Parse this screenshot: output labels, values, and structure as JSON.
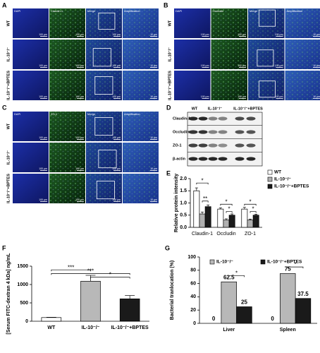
{
  "panel_labels": [
    "A",
    "B",
    "C",
    "D",
    "E",
    "F",
    "G"
  ],
  "micro_panels": [
    {
      "columns": [
        "DAPI",
        "Claudin-1",
        "Merge",
        "Amplification"
      ],
      "rows": [
        "WT",
        "IL-10⁻/⁻",
        "IL-10⁻/⁻+BPTES"
      ],
      "scales": [
        "100 μm",
        "100 μm",
        "100 μm",
        "10 μm"
      ]
    },
    {
      "columns": [
        "DAPI",
        "Occludin",
        "Merge",
        "Amplification"
      ],
      "rows": [
        "WT",
        "IL-10⁻/⁻",
        "IL-10⁻/⁻+BPTES"
      ],
      "scales": [
        "100 μm",
        "100 μm",
        "100 μm",
        "10 μm"
      ]
    },
    {
      "columns": [
        "DAPI",
        "ZO-1",
        "Merge",
        "Amplification"
      ],
      "rows": [
        "WT",
        "IL-10⁻/⁻",
        "IL-10⁻/⁻+BPTES"
      ],
      "scales": [
        "100 μm",
        "100 μm",
        "100 μm",
        "10 μm"
      ]
    }
  ],
  "blot": {
    "lanes": [
      "WT",
      "IL-10⁻/⁻",
      "IL-10⁻/⁻+BPTES"
    ],
    "proteins": [
      "Claudin-1",
      "Occludin",
      "ZO-1",
      "β-actin"
    ]
  },
  "chart_data": [
    {
      "type": "bar",
      "y_label": "Relative protein intensity",
      "categories": [
        "Claudin-1",
        "Occludin",
        "ZO-1"
      ],
      "ylim": [
        0,
        2
      ],
      "yticks": [
        {
          "value": 0,
          "label": "0.0"
        },
        0.5,
        {
          "value": 1,
          "label": "1.0"
        },
        1.5,
        {
          "value": 2,
          "label": "2.0"
        }
      ],
      "legend": "right",
      "series": [
        {
          "name": "WT",
          "color": "#ffffff",
          "values": [
            1.5,
            0.75,
            0.75
          ],
          "errors": [
            0.12,
            0.05,
            0.07
          ]
        },
        {
          "name": "IL-10⁻/⁻",
          "color": "#b0b0b0",
          "values": [
            0.55,
            0.3,
            0.3
          ],
          "errors": [
            0.08,
            0.05,
            0.04
          ]
        },
        {
          "name": "IL-10⁻/⁻+BPTES",
          "color": "#1a1a1a",
          "values": [
            0.85,
            0.5,
            0.5
          ],
          "errors": [
            0.07,
            0.05,
            0.04
          ]
        }
      ],
      "annotations": [
        "*",
        "**",
        "*",
        "*",
        "*",
        "*"
      ]
    },
    {
      "type": "bar",
      "y_label": "[Serum FITC-dextran 4 kDa] ng/mL",
      "categories": [
        "WT",
        "IL-10⁻/⁻",
        "IL-10⁻/⁻+BPTES"
      ],
      "values": [
        100,
        1090,
        610
      ],
      "errors": [
        8,
        160,
        90
      ],
      "colors": [
        "#ffffff",
        "#b8b8b8",
        "#1a1a1a"
      ],
      "ylim": [
        0,
        1500
      ],
      "yticks": [
        0,
        500,
        1000,
        1500
      ],
      "annotations": [
        "***",
        "***",
        "*"
      ]
    },
    {
      "type": "bar",
      "y_label": "Bacterial tranlocation (%)",
      "categories": [
        "Liver",
        "Spleen"
      ],
      "ylim": [
        0,
        100
      ],
      "yticks": [
        0,
        20,
        40,
        60,
        80,
        100
      ],
      "legend": "top",
      "show_values": true,
      "series": [
        {
          "color": "#ffffff",
          "values": [
            0,
            0
          ]
        },
        {
          "name": "IL-10⁻/⁻",
          "color": "#b8b8b8",
          "values": [
            62.5,
            75
          ]
        },
        {
          "name": "IL-10⁻/⁻+BPTES",
          "color": "#1a1a1a",
          "values": [
            25,
            37.5
          ]
        }
      ],
      "annotations": [
        "*",
        "*"
      ]
    }
  ]
}
